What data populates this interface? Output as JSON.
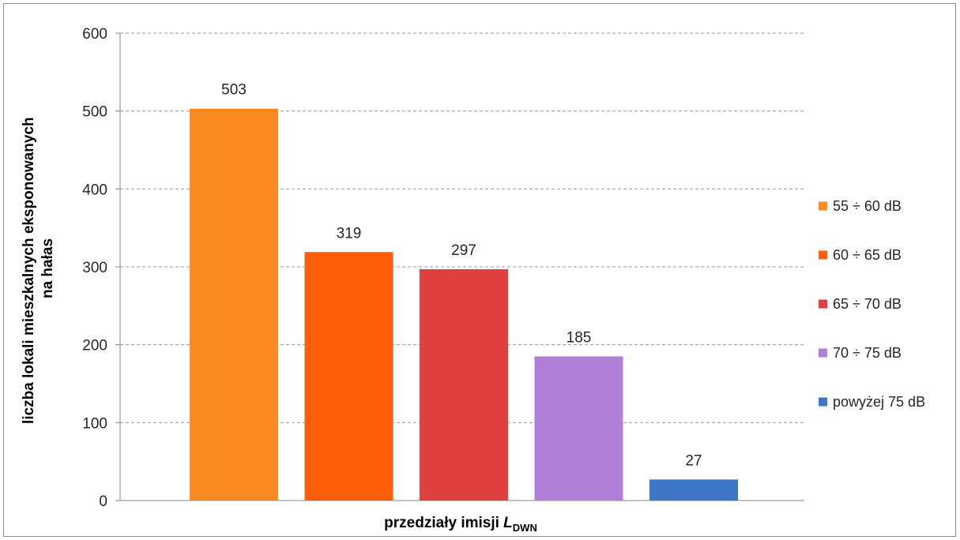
{
  "chart_data": {
    "type": "bar",
    "categories": [
      "55 ÷ 60 dB",
      "60 ÷ 65 dB",
      "65 ÷ 70 dB",
      "70 ÷ 75 dB",
      "powyżej 75 dB"
    ],
    "values": [
      503,
      319,
      297,
      185,
      27
    ],
    "colors": [
      "#f98b20",
      "#ff5f0a",
      "#e04040",
      "#b07fd7",
      "#3d77c6"
    ],
    "title": "",
    "xlabel_main": "przedziały imisji ",
    "xlabel_symbol": "L",
    "xlabel_subscript": "DWN",
    "ylabel_line1": "liczba lokali mieszkalnych eksponowanych",
    "ylabel_line2": "na hałas",
    "ylim": [
      0,
      600
    ],
    "yticks": [
      "0",
      "100",
      "200",
      "300",
      "400",
      "500",
      "600"
    ],
    "grid": true,
    "legend_position": "right"
  }
}
